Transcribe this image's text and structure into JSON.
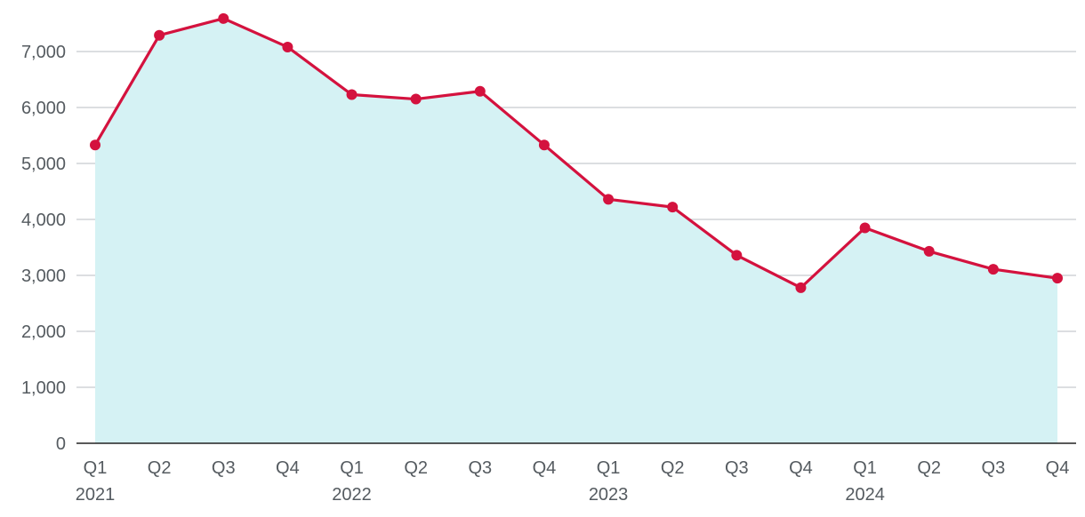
{
  "chart_data": {
    "type": "area",
    "title": "",
    "xlabel": "",
    "ylabel": "",
    "categories": [
      "Q1",
      "Q2",
      "Q3",
      "Q4",
      "Q1",
      "Q2",
      "Q3",
      "Q4",
      "Q1",
      "Q2",
      "Q3",
      "Q4",
      "Q1",
      "Q2",
      "Q3",
      "Q4"
    ],
    "years": [
      {
        "label": "2021",
        "index": 0
      },
      {
        "label": "2022",
        "index": 4
      },
      {
        "label": "2023",
        "index": 8
      },
      {
        "label": "2024",
        "index": 12
      }
    ],
    "series": [
      {
        "values": [
          5330,
          7290,
          7590,
          7080,
          6230,
          6150,
          6290,
          5330,
          4360,
          4220,
          3360,
          2780,
          3850,
          3430,
          3110,
          2950
        ]
      }
    ],
    "y_ticks": [
      0,
      1000,
      2000,
      3000,
      4000,
      5000,
      6000,
      7000
    ],
    "y_tick_labels": [
      "0",
      "1,000",
      "2,000",
      "3,000",
      "4,000",
      "5,000",
      "6,000",
      "7,000"
    ],
    "ylim": [
      0,
      7600
    ],
    "grid": true,
    "colors": {
      "line": "#d4123e",
      "area": "#d5f2f4",
      "grid": "#c8cbcf",
      "axis": "#222222",
      "text": "#555b60"
    }
  }
}
